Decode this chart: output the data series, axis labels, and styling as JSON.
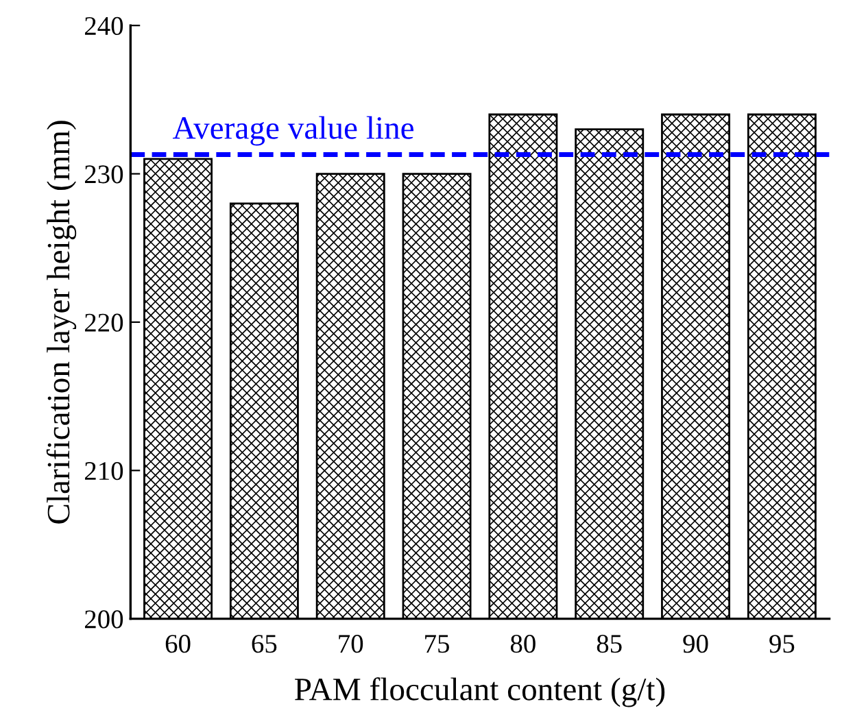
{
  "chart_data": {
    "type": "bar",
    "xlabel": "PAM flocculant content (g/t)",
    "ylabel": "Clarification layer height (mm)",
    "categories": [
      "60",
      "65",
      "70",
      "75",
      "80",
      "85",
      "90",
      "95"
    ],
    "values": [
      231,
      228,
      230,
      230,
      234,
      233,
      234,
      234
    ],
    "color": "#000000",
    "ylim": [
      200,
      240
    ],
    "yticks": [
      200,
      210,
      220,
      230,
      240
    ],
    "ref_lines": [
      {
        "axis": "y",
        "value": 231.3,
        "label": "Average value line",
        "color": "#0000ff",
        "line_style": "dashed"
      }
    ],
    "grid": false,
    "legend": false
  }
}
